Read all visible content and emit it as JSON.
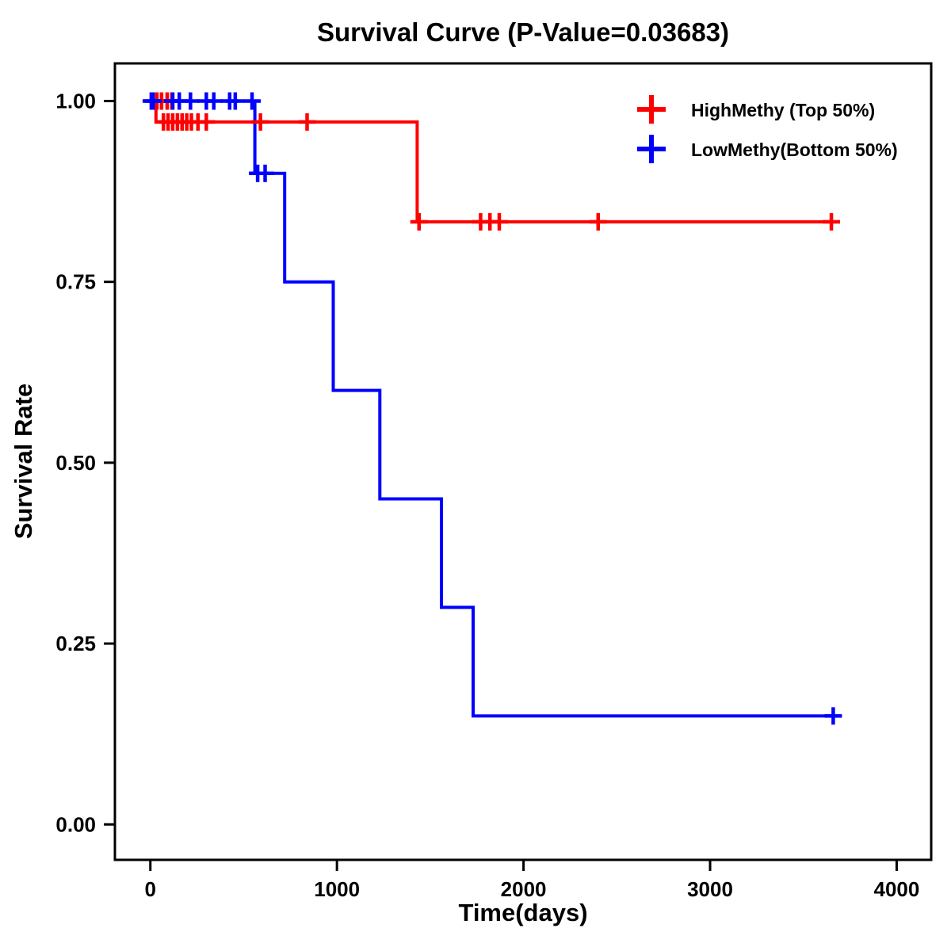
{
  "chart_data": {
    "type": "line",
    "subtype": "kaplan-meier-step",
    "title": "Survival Curve (P-Value=0.03683)",
    "xlabel": "Time(days)",
    "ylabel": "Survival Rate",
    "xlim": [
      0,
      4000
    ],
    "ylim": [
      0.0,
      1.0
    ],
    "grid": false,
    "legend_position": "top-right-inside",
    "x_ticks": [
      {
        "value": 0,
        "label": "0"
      },
      {
        "value": 1000,
        "label": "1000"
      },
      {
        "value": 2000,
        "label": "2000"
      },
      {
        "value": 3000,
        "label": "3000"
      },
      {
        "value": 4000,
        "label": "4000"
      }
    ],
    "y_ticks": [
      {
        "value": 0.0,
        "label": "0.00"
      },
      {
        "value": 0.25,
        "label": "0.25"
      },
      {
        "value": 0.5,
        "label": "0.50"
      },
      {
        "value": 0.75,
        "label": "0.75"
      },
      {
        "value": 1.0,
        "label": "1.00"
      }
    ],
    "series": [
      {
        "name": "HighMethy (Top 50%)",
        "color": "#FF0000",
        "step_points": [
          [
            0,
            1.0
          ],
          [
            30,
            1.0
          ],
          [
            30,
            0.971
          ],
          [
            1430,
            0.971
          ],
          [
            1430,
            0.833
          ],
          [
            3650,
            0.833
          ]
        ],
        "censor_marks": [
          [
            35,
            1.0
          ],
          [
            60,
            1.0
          ],
          [
            90,
            1.0
          ],
          [
            115,
            1.0
          ],
          [
            70,
            0.971
          ],
          [
            95,
            0.971
          ],
          [
            120,
            0.971
          ],
          [
            145,
            0.971
          ],
          [
            170,
            0.971
          ],
          [
            195,
            0.971
          ],
          [
            220,
            0.971
          ],
          [
            255,
            0.971
          ],
          [
            300,
            0.971
          ],
          [
            590,
            0.971
          ],
          [
            840,
            0.971
          ],
          [
            1440,
            0.833
          ],
          [
            1770,
            0.833
          ],
          [
            1820,
            0.833
          ],
          [
            1870,
            0.833
          ],
          [
            2400,
            0.833
          ],
          [
            3650,
            0.833
          ]
        ]
      },
      {
        "name": "LowMethy(Bottom 50%)",
        "color": "#0000FF",
        "step_points": [
          [
            0,
            1.0
          ],
          [
            560,
            1.0
          ],
          [
            560,
            0.9
          ],
          [
            720,
            0.9
          ],
          [
            720,
            0.75
          ],
          [
            980,
            0.75
          ],
          [
            980,
            0.6
          ],
          [
            1230,
            0.6
          ],
          [
            1230,
            0.45
          ],
          [
            1560,
            0.45
          ],
          [
            1560,
            0.3
          ],
          [
            1730,
            0.3
          ],
          [
            1730,
            0.15
          ],
          [
            3660,
            0.15
          ]
        ],
        "censor_marks": [
          [
            5,
            1.0
          ],
          [
            15,
            1.0
          ],
          [
            120,
            1.0
          ],
          [
            155,
            1.0
          ],
          [
            215,
            1.0
          ],
          [
            300,
            1.0
          ],
          [
            340,
            1.0
          ],
          [
            425,
            1.0
          ],
          [
            455,
            1.0
          ],
          [
            545,
            1.0
          ],
          [
            575,
            0.9
          ],
          [
            615,
            0.9
          ],
          [
            3660,
            0.15
          ]
        ]
      }
    ]
  }
}
